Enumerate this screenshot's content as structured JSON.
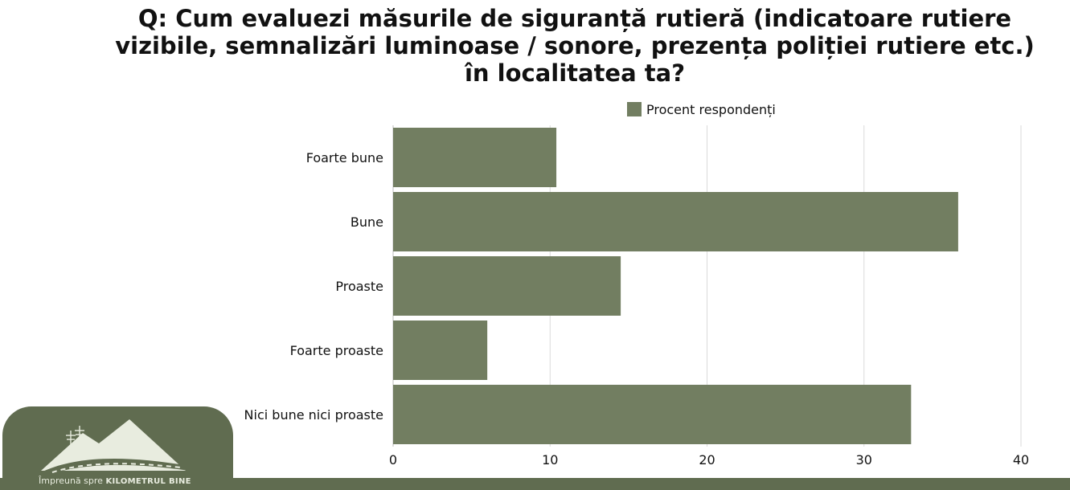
{
  "title": "Q: Cum evaluezi măsurile de siguranță rutieră (indicatoare rutiere vizibile, semnalizări luminoase / sonore, prezența poliției rutiere etc.) în localitatea ta?",
  "colors": {
    "bar": "#727e61",
    "grid": "#dadada",
    "footer": "#606c50"
  },
  "chart_data": {
    "type": "bar",
    "orientation": "horizontal",
    "title": "Q: Cum evaluezi măsurile de siguranță rutieră (indicatoare rutiere vizibile, semnalizări luminoase / sonore, prezența poliției rutiere etc.) în localitatea ta?",
    "categories": [
      "Foarte bune",
      "Bune",
      "Proaste",
      "Foarte proaste",
      "Nici bune nici proaste"
    ],
    "series": [
      {
        "name": "Procent respondenți",
        "values": [
          10.4,
          36.0,
          14.5,
          6.0,
          33.0
        ]
      }
    ],
    "xlim": [
      0,
      40
    ],
    "xticks": [
      0,
      10,
      20,
      30,
      40
    ],
    "grid": true,
    "legend": "top-center"
  },
  "footer": {
    "tagline_prefix": "Împreună spre",
    "tagline_brand": "KILOMETRUL BINE"
  }
}
